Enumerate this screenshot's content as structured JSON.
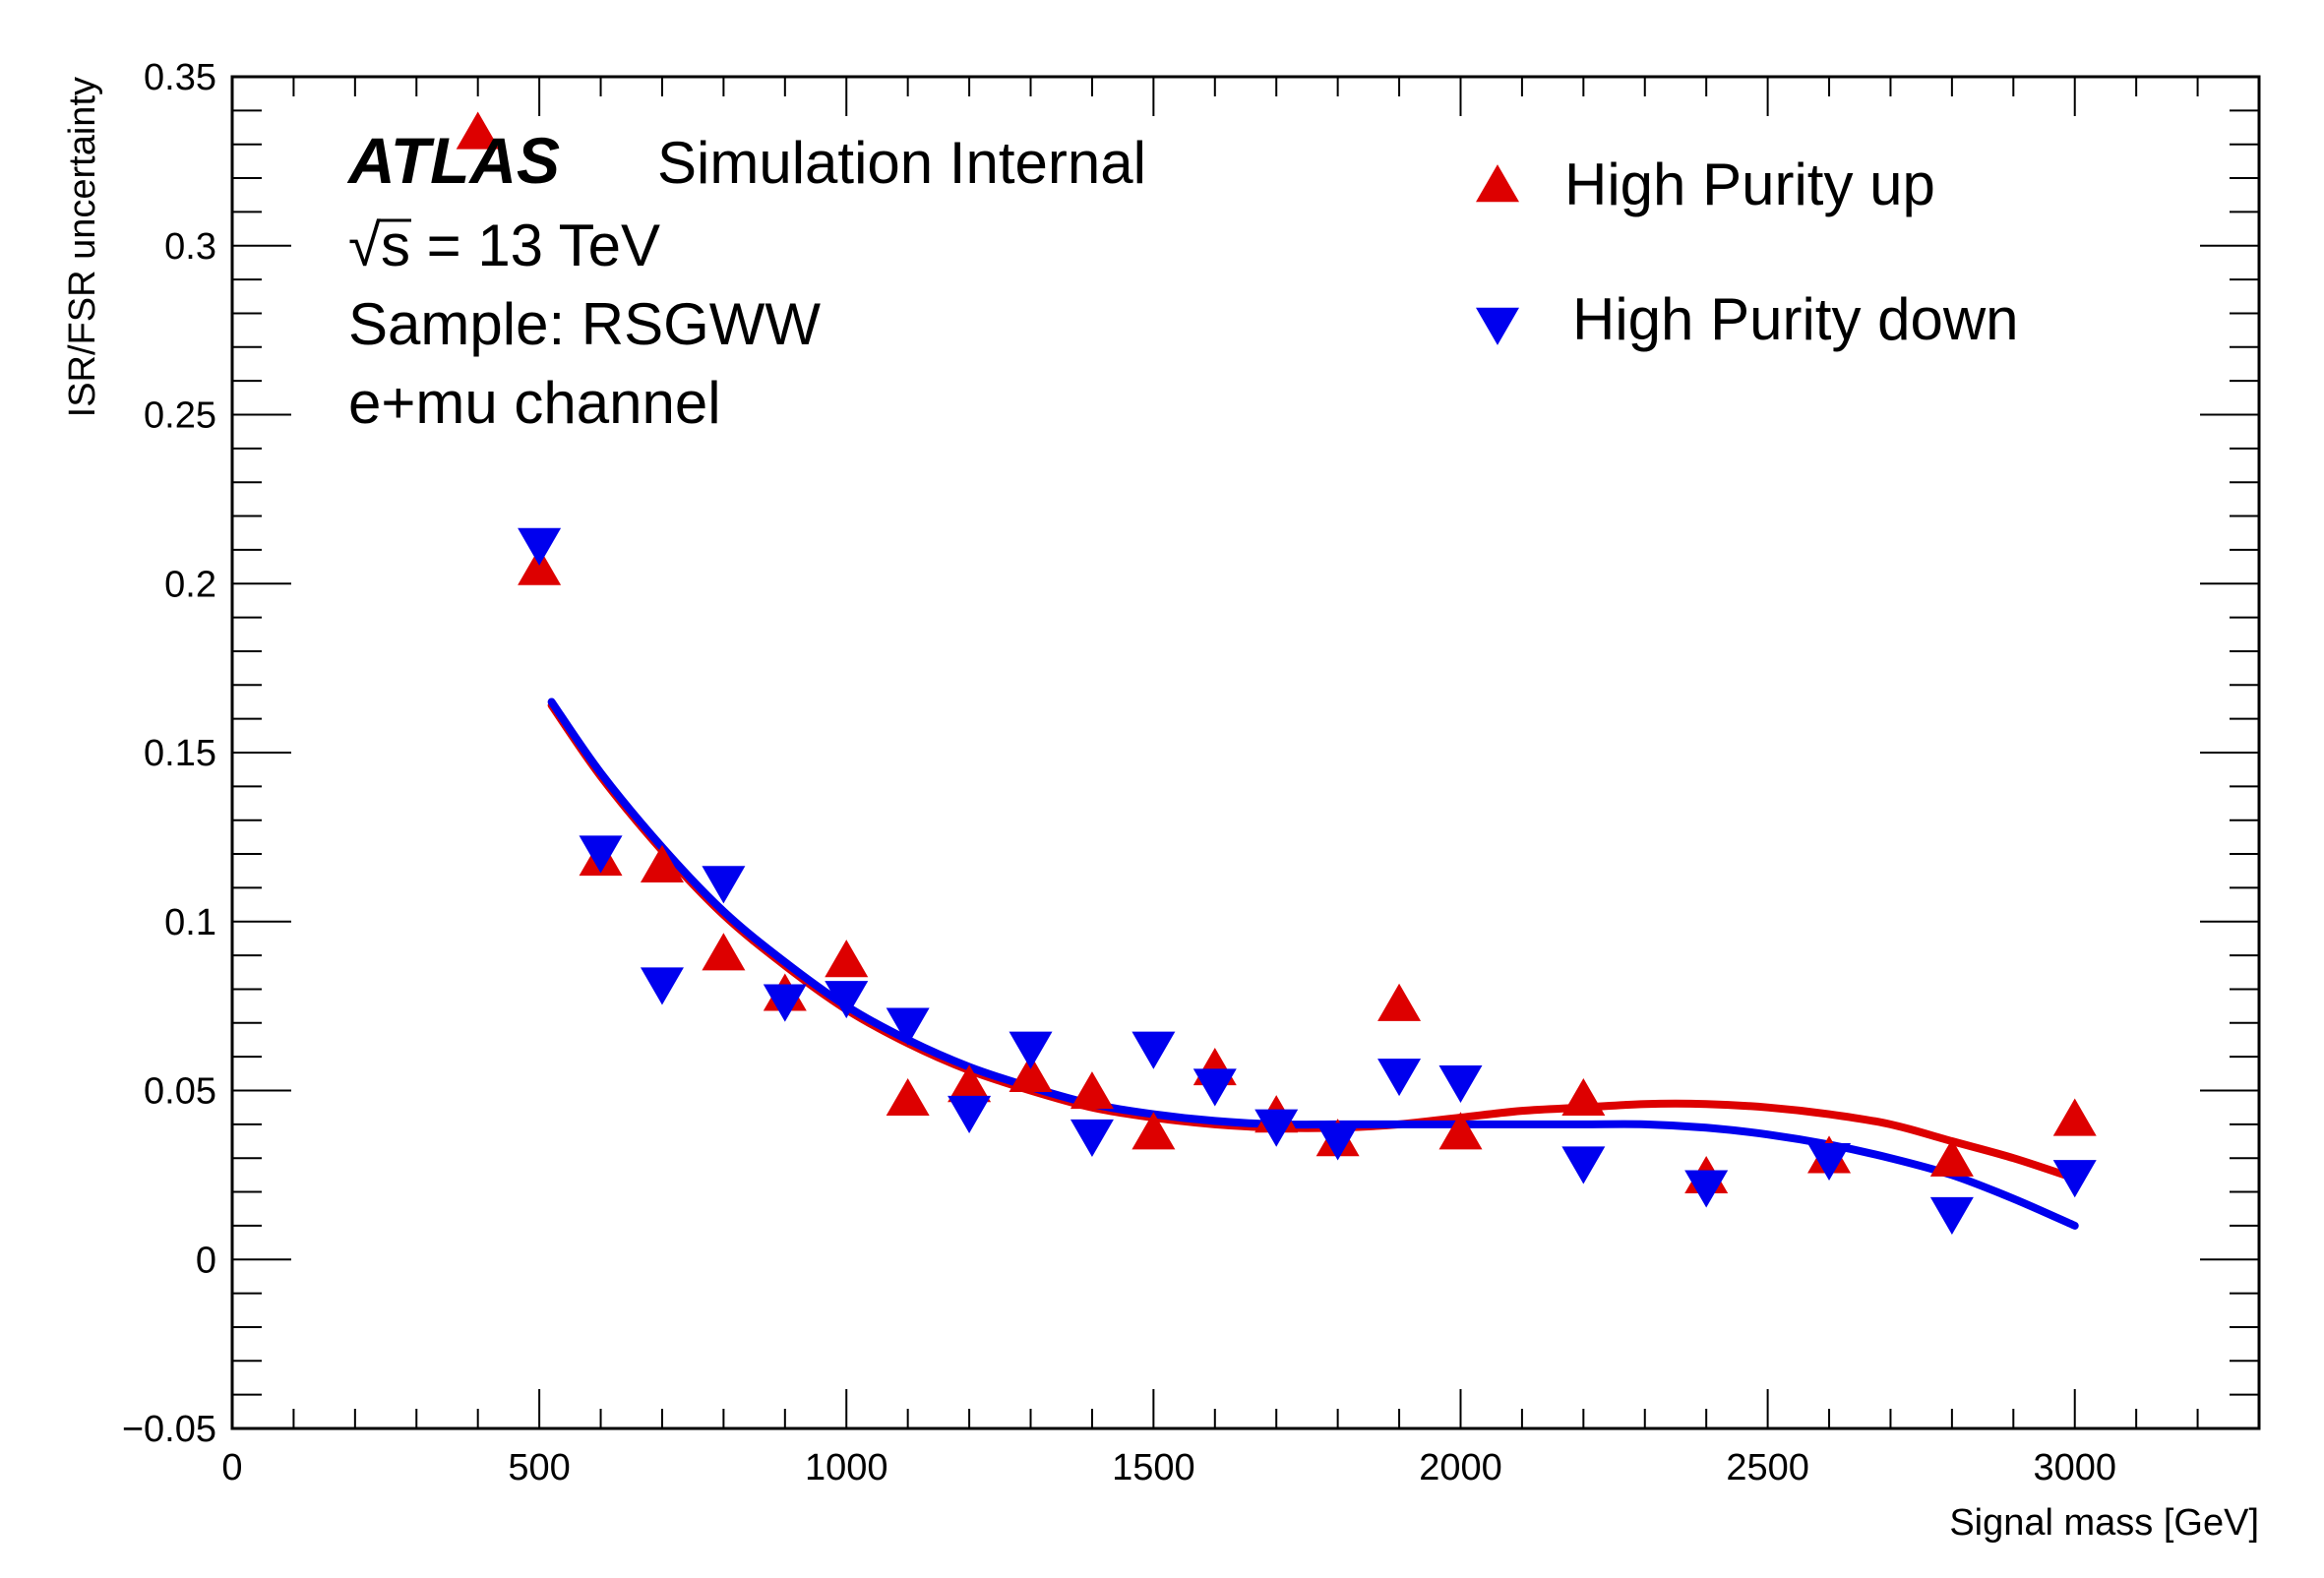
{
  "chart_data": {
    "type": "scatter",
    "title": "",
    "xlabel": "Signal mass [GeV]",
    "ylabel": "ISR/FSR uncertainty",
    "xlim": [
      0,
      3300
    ],
    "ylim": [
      -0.05,
      0.35
    ],
    "grid": false,
    "legend_position": "top-right",
    "x_ticks": [
      0,
      500,
      1000,
      1500,
      2000,
      2500,
      3000
    ],
    "x_tick_labels": [
      "0",
      "500",
      "1000",
      "1500",
      "2000",
      "2500",
      "3000"
    ],
    "y_ticks": [
      -0.05,
      0,
      0.05,
      0.1,
      0.15,
      0.2,
      0.25,
      0.3,
      0.35
    ],
    "y_tick_labels": [
      "−0.05",
      "0",
      "0.05",
      "0.1",
      "0.15",
      "0.2",
      "0.25",
      "0.3",
      "0.35"
    ],
    "annotations": {
      "atlas": "ATLAS",
      "label": "Simulation Internal",
      "energy_sqrt": "√",
      "energy_s": "s",
      "energy_rest": " = 13 TeV",
      "sample": "Sample: RSGWW",
      "channel": "e+mu channel"
    },
    "series": [
      {
        "name": "High Purity up",
        "color": "#dd0000",
        "marker": "triangle-up",
        "x": [
          400,
          500,
          600,
          700,
          800,
          900,
          1000,
          1100,
          1200,
          1300,
          1400,
          1500,
          1600,
          1700,
          1800,
          1900,
          2000,
          2200,
          2400,
          2600,
          2800,
          3000
        ],
        "y": [
          0.333,
          0.204,
          0.118,
          0.116,
          0.09,
          0.078,
          0.088,
          0.047,
          0.051,
          0.054,
          0.049,
          0.037,
          0.056,
          0.042,
          0.035,
          0.075,
          0.037,
          0.047,
          0.024,
          0.03,
          0.029,
          0.041
        ],
        "fit": {
          "x": [
            520,
            600,
            700,
            800,
            900,
            1000,
            1100,
            1200,
            1300,
            1400,
            1500,
            1600,
            1700,
            1800,
            1900,
            2000,
            2100,
            2200,
            2300,
            2400,
            2500,
            2600,
            2700,
            2800,
            2900,
            3000
          ],
          "y": [
            0.164,
            0.143,
            0.121,
            0.102,
            0.087,
            0.074,
            0.064,
            0.056,
            0.05,
            0.045,
            0.042,
            0.04,
            0.039,
            0.039,
            0.04,
            0.042,
            0.044,
            0.045,
            0.046,
            0.046,
            0.045,
            0.043,
            0.04,
            0.035,
            0.03,
            0.024
          ]
        }
      },
      {
        "name": "High Purity down",
        "color": "#0000ee",
        "marker": "triangle-down",
        "x": [
          500,
          600,
          700,
          800,
          900,
          1000,
          1100,
          1200,
          1300,
          1400,
          1500,
          1600,
          1700,
          1800,
          1900,
          2000,
          2200,
          2400,
          2600,
          2800,
          3000
        ],
        "y": [
          0.212,
          0.121,
          0.082,
          0.112,
          0.077,
          0.078,
          0.07,
          0.044,
          0.063,
          0.037,
          0.063,
          0.052,
          0.04,
          0.036,
          0.055,
          0.053,
          0.029,
          0.022,
          0.03,
          0.014,
          0.025
        ],
        "fit": {
          "x": [
            520,
            600,
            700,
            800,
            900,
            1000,
            1100,
            1200,
            1300,
            1400,
            1500,
            1600,
            1700,
            1800,
            1900,
            2000,
            2100,
            2200,
            2300,
            2400,
            2500,
            2600,
            2700,
            2800,
            2900,
            3000
          ],
          "y": [
            0.165,
            0.144,
            0.122,
            0.103,
            0.088,
            0.075,
            0.065,
            0.057,
            0.051,
            0.046,
            0.043,
            0.041,
            0.04,
            0.04,
            0.04,
            0.04,
            0.04,
            0.04,
            0.04,
            0.039,
            0.037,
            0.034,
            0.03,
            0.025,
            0.018,
            0.01
          ]
        }
      }
    ]
  }
}
